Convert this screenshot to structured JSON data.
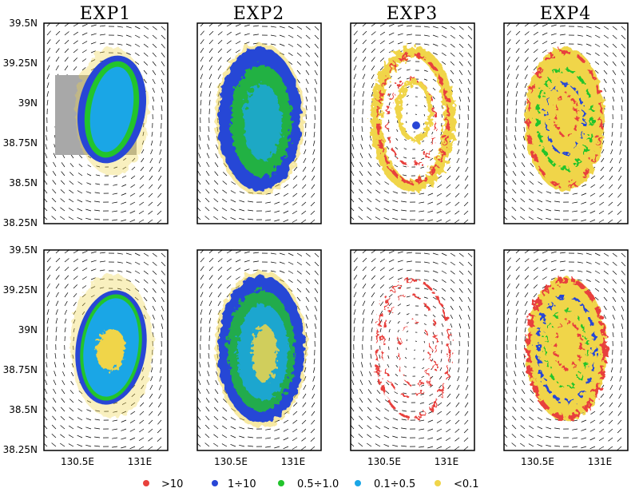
{
  "columns": [
    {
      "title": "EXP1"
    },
    {
      "title": "EXP2"
    },
    {
      "title": "EXP3"
    },
    {
      "title": "EXP4"
    }
  ],
  "lat_ticks": [
    "39.5N",
    "39.25N",
    "39N",
    "38.75N",
    "38.5N",
    "38.25N"
  ],
  "lon_ticks": [
    "130.5E",
    "131E"
  ],
  "legend": [
    {
      "label": ">10",
      "color": "#e8413c"
    },
    {
      "label": "1÷10",
      "color": "#2846d6"
    },
    {
      "label": "0.5÷1.0",
      "color": "#22c42c"
    },
    {
      "label": "0.1÷0.5",
      "color": "#1aa6e6"
    },
    {
      "label": "<0.1",
      "color": "#f0d54a"
    }
  ],
  "colors": {
    "gt10": "#e8413c",
    "b1_10": "#2846d6",
    "b05_1": "#22c42c",
    "b01_05": "#1aa6e6",
    "lt01": "#f0d54a",
    "grey_box": "#a8a8a8"
  }
}
